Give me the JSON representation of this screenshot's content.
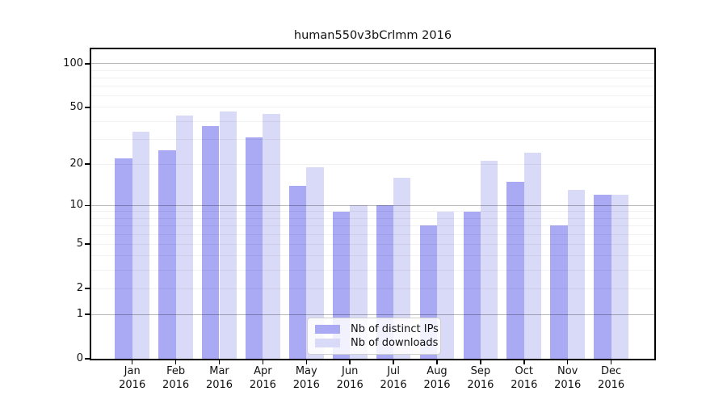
{
  "title": "human550v3bCrlmm 2016",
  "chart_data": {
    "type": "bar",
    "title": "human550v3bCrlmm 2016",
    "scale": "log1p",
    "categories": [
      "Jan",
      "Feb",
      "Mar",
      "Apr",
      "May",
      "Jun",
      "Jul",
      "Aug",
      "Sep",
      "Oct",
      "Nov",
      "Dec"
    ],
    "year_label": "2016",
    "series": [
      {
        "name": "Nb of distinct IPs",
        "color": "#a9a9f4",
        "values": [
          22,
          25,
          37,
          31,
          14,
          9,
          10,
          7,
          9,
          15,
          7,
          12
        ]
      },
      {
        "name": "Nb of downloads",
        "color": "#d9d9f8",
        "values": [
          34,
          44,
          47,
          45,
          19,
          10,
          16,
          9,
          21,
          24,
          13,
          12
        ]
      }
    ],
    "yticks": [
      0,
      1,
      2,
      5,
      10,
      20,
      50,
      100
    ],
    "major_gridlines": [
      1,
      10,
      100
    ],
    "minor_gridlines": [
      2,
      3,
      4,
      5,
      6,
      7,
      8,
      9,
      20,
      30,
      40,
      50,
      60,
      70,
      80,
      90
    ],
    "ylim": [
      0,
      130
    ],
    "xlabel": "",
    "ylabel": "",
    "grid": true,
    "legend_position": "bottom-center"
  },
  "colors": {
    "bar_dark": "#a9a9f4",
    "bar_light": "#d9d9f8",
    "major_grid": "#b8b8b8",
    "minor_grid": "#f0f0f0",
    "frame": "#000000",
    "background": "#ffffff"
  }
}
